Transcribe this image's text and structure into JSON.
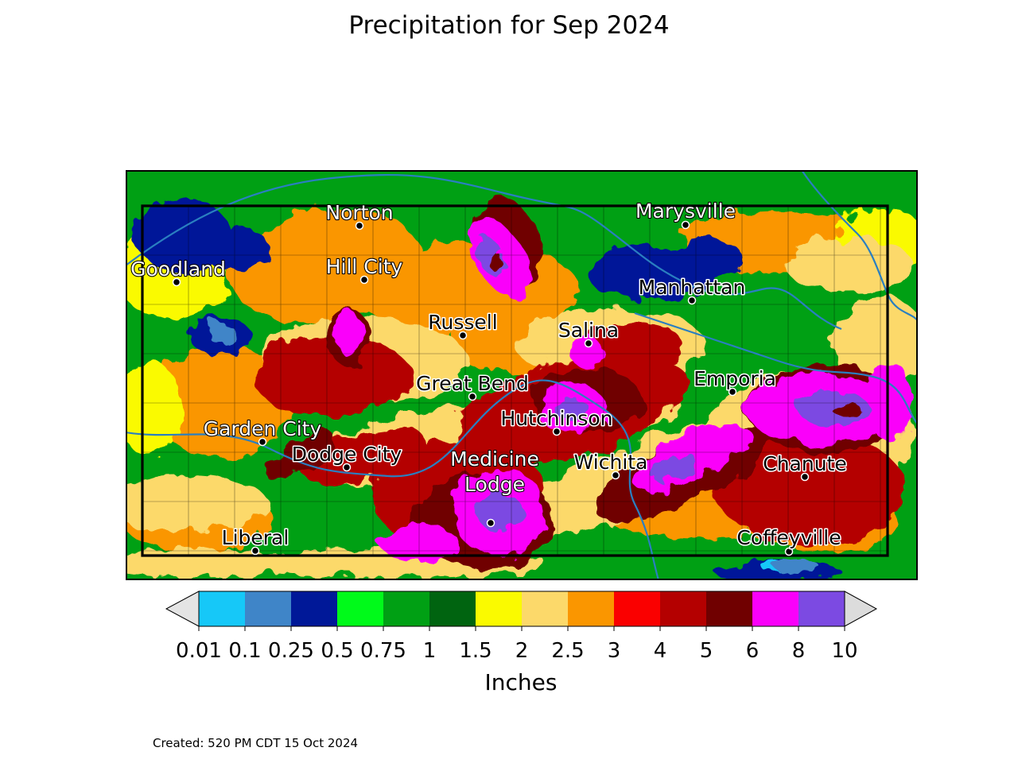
{
  "title": "Precipitation for Sep 2024",
  "units": "Inches",
  "created": "Created: 520 PM CDT 15 Oct 2024",
  "colorbar": {
    "ticks": [
      "0.01",
      "0.1",
      "0.25",
      "0.5",
      "0.75",
      "1",
      "1.5",
      "2",
      "2.5",
      "3",
      "4",
      "5",
      "6",
      "8",
      "10"
    ],
    "colors": [
      "#16c8f8",
      "#3f85c8",
      "#001898",
      "#00fa1a",
      "#00a014",
      "#006410",
      "#fafa00",
      "#fcd96a",
      "#fa9600",
      "#fa0000",
      "#b40000",
      "#700000",
      "#fa00fa",
      "#7c4ae2"
    ],
    "under_color": "#e4e4e4",
    "over_color": "#dcdcdc"
  },
  "cities": [
    {
      "name": "Norton",
      "label_color": "#ffffff"
    },
    {
      "name": "Marysville",
      "label_color": "#ffffff"
    },
    {
      "name": "Goodland",
      "label_color": "#ffffff"
    },
    {
      "name": "Hill City",
      "label_color": "#ffffff"
    },
    {
      "name": "Manhattan",
      "label_color": "#000000"
    },
    {
      "name": "Russell",
      "label_color": "#000000"
    },
    {
      "name": "Salina",
      "label_color": "#000000"
    },
    {
      "name": "Emporia",
      "label_color": "#000000"
    },
    {
      "name": "Great Bend",
      "label_color": "#000000"
    },
    {
      "name": "Hutchinson",
      "label_color": "#000000"
    },
    {
      "name": "Garden City",
      "label_color": "#ffffff"
    },
    {
      "name": "Dodge City",
      "label_color": "#000000"
    },
    {
      "name": "Wichita",
      "label_color": "#000000"
    },
    {
      "name": "Chanute",
      "label_color": "#000000"
    },
    {
      "name": "Medicine\nLodge",
      "label_color": "#ffffff"
    },
    {
      "name": "Liberal",
      "label_color": "#000000"
    },
    {
      "name": "Coffeyville",
      "label_color": "#000000"
    }
  ]
}
